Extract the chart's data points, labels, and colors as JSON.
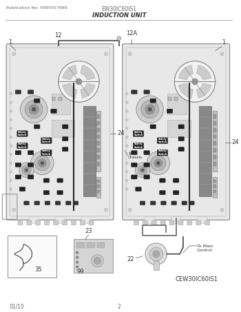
{
  "pub_no": "Publication No: 5995557898",
  "model_top": "EW30IC60IS1",
  "section": "INDUCTION UNIT",
  "date": "01/10",
  "page": "2",
  "bottom_model": "CEW30IC60IS1",
  "bg_color": "#ffffff",
  "board_fill": "#e8e8e8",
  "board_edge": "#999999",
  "heatsink_fill": "#aaaaaa",
  "fan_fill": "#f0f0f0",
  "fan_blade": "#cccccc",
  "coil_color": "#bbbbbb",
  "blob_dark": "#222222",
  "text_color": "#333333",
  "text_light": "#666666",
  "wire_color": "#555555"
}
